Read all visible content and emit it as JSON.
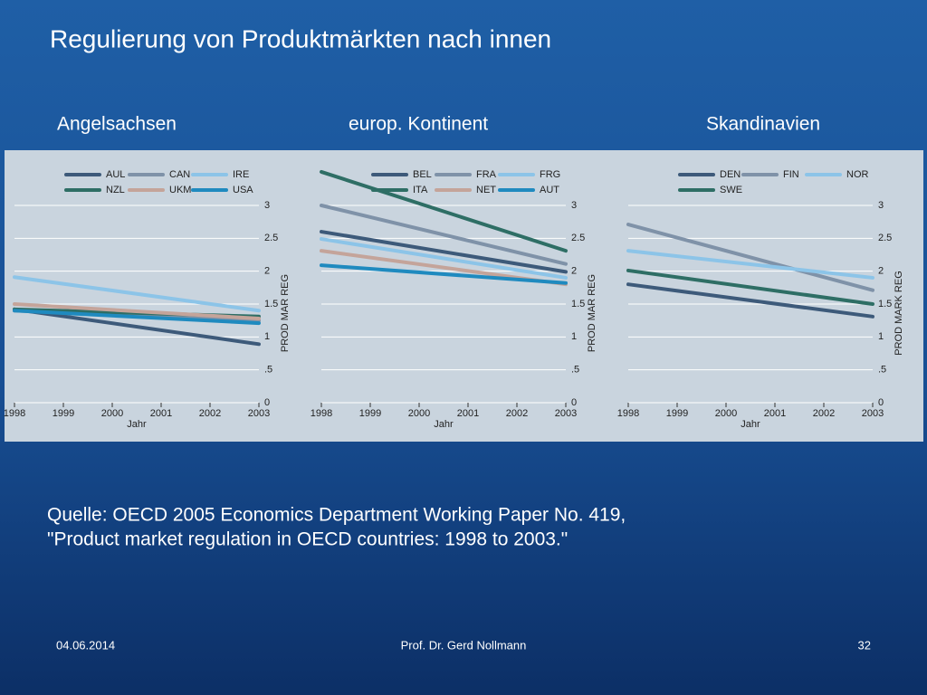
{
  "title": "Regulierung von Produktmärkten nach innen",
  "sections": [
    "Angelsachsen",
    "europ. Kontinent",
    "Skandinavien"
  ],
  "source": [
    "Quelle: OECD 2005 Economics Department Working Paper No. 419,",
    "\"Product market regulation in OECD countries: 1998 to 2003.\""
  ],
  "footer": {
    "date": "04.06.2014",
    "author": "Prof. Dr. Gerd Nollmann",
    "page": "32"
  },
  "chart_data": [
    {
      "type": "line",
      "x": [
        1998,
        2003
      ],
      "xlim": [
        1998,
        2003
      ],
      "xticks": [
        1998,
        1999,
        2000,
        2001,
        2002,
        2003
      ],
      "x_label": "Jahr",
      "y_label": "PROD MAR REG",
      "ylim": [
        0,
        3
      ],
      "yticks": [
        0,
        {
          "value": 0.5,
          "label": ".5"
        },
        1,
        1.5,
        2,
        2.5,
        3
      ],
      "grid": true,
      "series": [
        {
          "name": "AUL",
          "color": "#3d5a7a",
          "values": [
            1.42,
            0.89
          ]
        },
        {
          "name": "CAN",
          "color": "#7f92a8",
          "values": [
            1.4,
            1.25
          ]
        },
        {
          "name": "IRE",
          "color": "#8cc4e8",
          "values": [
            1.91,
            1.4
          ]
        },
        {
          "name": "NZL",
          "color": "#2e6e65",
          "values": [
            1.42,
            1.31
          ]
        },
        {
          "name": "UKM",
          "color": "#c4a49a",
          "values": [
            1.5,
            1.28
          ]
        },
        {
          "name": "USA",
          "color": "#1f8abf",
          "values": [
            1.4,
            1.21
          ]
        }
      ]
    },
    {
      "type": "line",
      "x": [
        1998,
        2003
      ],
      "xlim": [
        1998,
        2003
      ],
      "xticks": [
        1998,
        1999,
        2000,
        2001,
        2002,
        2003
      ],
      "x_label": "Jahr",
      "y_label": "PROD MAR REG",
      "ylim": [
        0,
        3.5
      ],
      "yticks": [
        0,
        {
          "value": 0.5,
          "label": ".5"
        },
        1,
        1.5,
        2,
        2.5,
        3
      ],
      "grid": true,
      "series": [
        {
          "name": "BEL",
          "color": "#3d5a7a",
          "values": [
            2.6,
            1.99
          ]
        },
        {
          "name": "FRA",
          "color": "#7f92a8",
          "values": [
            3.0,
            2.11
          ]
        },
        {
          "name": "FRG",
          "color": "#8cc4e8",
          "values": [
            2.49,
            1.9
          ]
        },
        {
          "name": "ITA",
          "color": "#2e6e65",
          "values": [
            3.51,
            2.31
          ]
        },
        {
          "name": "NET",
          "color": "#c4a49a",
          "values": [
            2.31,
            1.8
          ]
        },
        {
          "name": "AUT",
          "color": "#1f8abf",
          "values": [
            2.09,
            1.82
          ]
        }
      ]
    },
    {
      "type": "line",
      "x": [
        1998,
        2003
      ],
      "xlim": [
        1998,
        2003
      ],
      "xticks": [
        1998,
        1999,
        2000,
        2001,
        2002,
        2003
      ],
      "x_label": "Jahr",
      "y_label": "PROD MARK REG",
      "ylim": [
        0,
        3
      ],
      "yticks": [
        0,
        {
          "value": 0.5,
          "label": ".5"
        },
        1,
        1.5,
        2,
        2.5,
        3
      ],
      "grid": true,
      "series": [
        {
          "name": "DEN",
          "color": "#3d5a7a",
          "values": [
            1.8,
            1.31
          ]
        },
        {
          "name": "FIN",
          "color": "#7f92a8",
          "values": [
            2.71,
            1.71
          ]
        },
        {
          "name": "NOR",
          "color": "#8cc4e8",
          "values": [
            2.31,
            1.9
          ]
        },
        {
          "name": "SWE",
          "color": "#2e6e65",
          "values": [
            2.01,
            1.5
          ]
        }
      ]
    }
  ]
}
